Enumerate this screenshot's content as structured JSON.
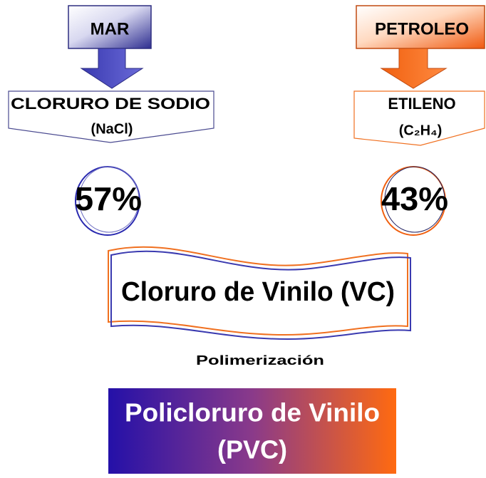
{
  "left": {
    "source": "MAR",
    "compound": "CLORURO DE SODIO",
    "formula": "(NaCl)",
    "share": "57%"
  },
  "right": {
    "source": "PETROLEO",
    "compound": "ETILENO",
    "formula": "(C₂H₄)",
    "share": "43%"
  },
  "intermediate": "Cloruro de Vinilo (VC)",
  "process": "Polimerización",
  "product": {
    "line1": "Policloruro de Vinilo",
    "line2": "(PVC)"
  }
}
